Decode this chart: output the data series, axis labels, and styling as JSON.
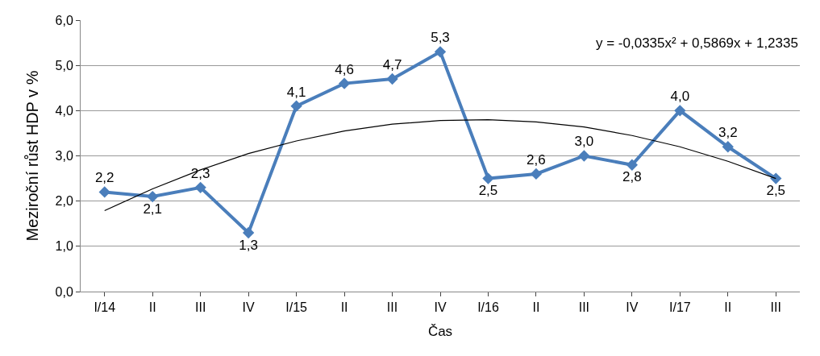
{
  "chart_data": {
    "type": "line",
    "xlabel": "Čas",
    "ylabel": "Meziroční růst HDP v %",
    "categories": [
      "I/14",
      "II",
      "III",
      "IV",
      "I/15",
      "II",
      "III",
      "IV",
      "I/16",
      "II",
      "III",
      "IV",
      "I/17",
      "II",
      "III"
    ],
    "series": [
      {
        "color": "#4a7ebb",
        "marker": "diamond",
        "values": [
          2.2,
          2.1,
          2.3,
          1.3,
          4.1,
          4.6,
          4.7,
          5.3,
          2.5,
          2.6,
          3.0,
          2.8,
          4.0,
          3.2,
          2.5
        ],
        "value_labels": [
          "2,2",
          "2,1",
          "2,3",
          "1,3",
          "4,1",
          "4,6",
          "4,7",
          "5,3",
          "2,5",
          "2,6",
          "3,0",
          "2,8",
          "4,0",
          "3,2",
          "2,5"
        ]
      },
      {
        "color": "#000000",
        "marker": "none",
        "values": [
          1.79,
          2.27,
          2.69,
          3.05,
          3.33,
          3.55,
          3.7,
          3.78,
          3.8,
          3.75,
          3.64,
          3.45,
          3.2,
          2.88,
          2.5
        ]
      }
    ],
    "ylim": [
      0,
      6
    ],
    "yticks": [
      {
        "value": 0,
        "label": "0,0"
      },
      {
        "value": 1,
        "label": "1,0"
      },
      {
        "value": 2,
        "label": "2,0"
      },
      {
        "value": 3,
        "label": "3,0"
      },
      {
        "value": 4,
        "label": "4,0"
      },
      {
        "value": 5,
        "label": "5,0"
      },
      {
        "value": 6,
        "label": "6,0"
      }
    ],
    "grid": "y",
    "annotations": [
      "y = -0,0335x² + 0,5869x + 1,2335"
    ]
  }
}
